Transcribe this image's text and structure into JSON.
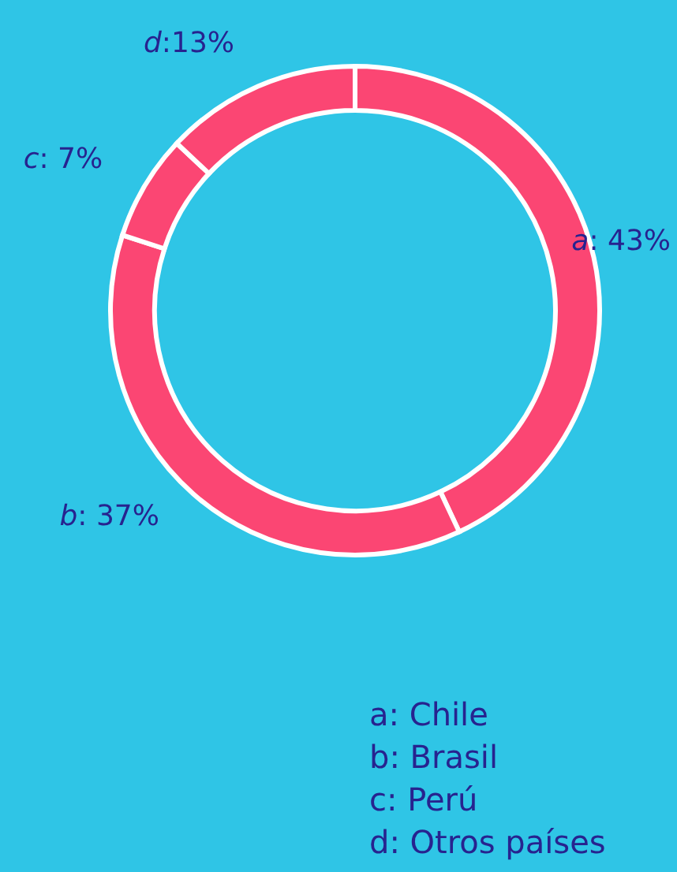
{
  "chart_data": {
    "type": "donut",
    "categories": [
      "a",
      "b",
      "c",
      "d"
    ],
    "values": [
      43,
      37,
      7,
      13
    ],
    "colors": [
      "#fb4673",
      "#fb4673",
      "#fb4673",
      "#fb4673"
    ],
    "value_labels": [
      ": 43%",
      ": 37%",
      ": 7%",
      ":13%"
    ],
    "annotations": [
      "a: Chile",
      "b: Brasil",
      "c: Perú",
      "d: Otros países"
    ]
  }
}
